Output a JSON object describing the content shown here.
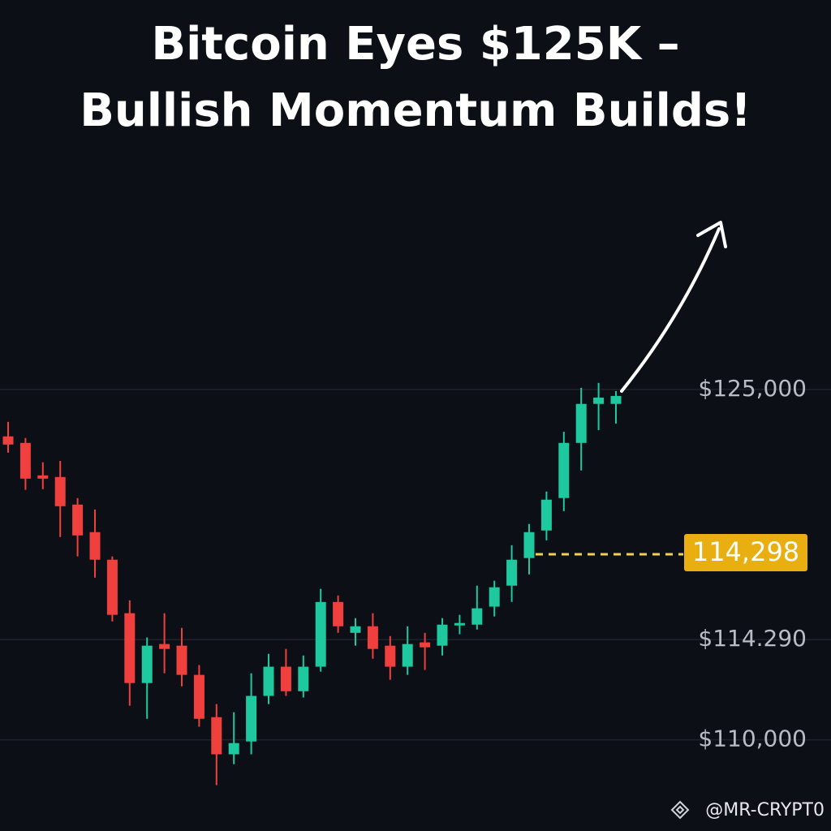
{
  "chart_data": {
    "type": "candlestick",
    "title_lines": [
      "Bitcoin Eyes $125K –",
      "Bullish Momentum Builds!"
    ],
    "up_color": "#1ec99f",
    "down_color": "#f0403e",
    "ylim": [
      107000,
      135000
    ],
    "yticks": [
      {
        "value": 125000,
        "label": "$125,000"
      },
      {
        "value": 114290,
        "label": "$114.290"
      },
      {
        "value": 110000,
        "label": "$110,000"
      }
    ],
    "grid": true,
    "price_tag": "114,298",
    "watermark": "@MR-CRYPT0",
    "candles": [
      {
        "open": 122990,
        "high": 123610,
        "low": 122290,
        "close": 122640
      },
      {
        "open": 122710,
        "high": 122920,
        "low": 120700,
        "close": 121180
      },
      {
        "open": 121320,
        "high": 121880,
        "low": 120730,
        "close": 121180
      },
      {
        "open": 121250,
        "high": 121940,
        "low": 118680,
        "close": 120000
      },
      {
        "open": 120070,
        "high": 120350,
        "low": 117850,
        "close": 118750
      },
      {
        "open": 118890,
        "high": 119860,
        "low": 116940,
        "close": 117710
      },
      {
        "open": 117710,
        "high": 117850,
        "low": 115070,
        "close": 115350
      },
      {
        "open": 115420,
        "high": 115970,
        "low": 111460,
        "close": 112430
      },
      {
        "open": 112430,
        "high": 114380,
        "low": 110900,
        "close": 114030
      },
      {
        "open": 114100,
        "high": 115420,
        "low": 112850,
        "close": 113890
      },
      {
        "open": 114030,
        "high": 114790,
        "low": 112290,
        "close": 112780
      },
      {
        "open": 112780,
        "high": 113200,
        "low": 110560,
        "close": 110900
      },
      {
        "open": 110970,
        "high": 111530,
        "low": 108060,
        "close": 109380
      },
      {
        "open": 109380,
        "high": 111180,
        "low": 108960,
        "close": 109860
      },
      {
        "open": 109930,
        "high": 112850,
        "low": 109380,
        "close": 111880
      },
      {
        "open": 111880,
        "high": 113680,
        "low": 111530,
        "close": 113130
      },
      {
        "open": 113130,
        "high": 113890,
        "low": 111880,
        "close": 112080
      },
      {
        "open": 112080,
        "high": 113610,
        "low": 111810,
        "close": 113130
      },
      {
        "open": 113130,
        "high": 116460,
        "low": 112920,
        "close": 115900
      },
      {
        "open": 115900,
        "high": 116180,
        "low": 114580,
        "close": 114860
      },
      {
        "open": 114580,
        "high": 115210,
        "low": 114030,
        "close": 114860
      },
      {
        "open": 114860,
        "high": 115420,
        "low": 113470,
        "close": 113890
      },
      {
        "open": 114030,
        "high": 114440,
        "low": 112570,
        "close": 113130
      },
      {
        "open": 113130,
        "high": 114860,
        "low": 112780,
        "close": 114100
      },
      {
        "open": 114170,
        "high": 114580,
        "low": 112990,
        "close": 113960
      },
      {
        "open": 114030,
        "high": 115210,
        "low": 113610,
        "close": 114930
      },
      {
        "open": 114930,
        "high": 115350,
        "low": 114520,
        "close": 115000
      },
      {
        "open": 114930,
        "high": 116600,
        "low": 114720,
        "close": 115630
      },
      {
        "open": 115700,
        "high": 116810,
        "low": 115280,
        "close": 116530
      },
      {
        "open": 116600,
        "high": 118330,
        "low": 115900,
        "close": 117710
      },
      {
        "open": 117780,
        "high": 119240,
        "low": 117080,
        "close": 118890
      },
      {
        "open": 118960,
        "high": 120630,
        "low": 118540,
        "close": 120280
      },
      {
        "open": 120350,
        "high": 123190,
        "low": 119790,
        "close": 122710
      },
      {
        "open": 122710,
        "high": 125070,
        "low": 121530,
        "close": 124380
      },
      {
        "open": 124380,
        "high": 125280,
        "low": 123260,
        "close": 124650
      },
      {
        "open": 124380,
        "high": 124930,
        "low": 123540,
        "close": 124720
      }
    ]
  }
}
